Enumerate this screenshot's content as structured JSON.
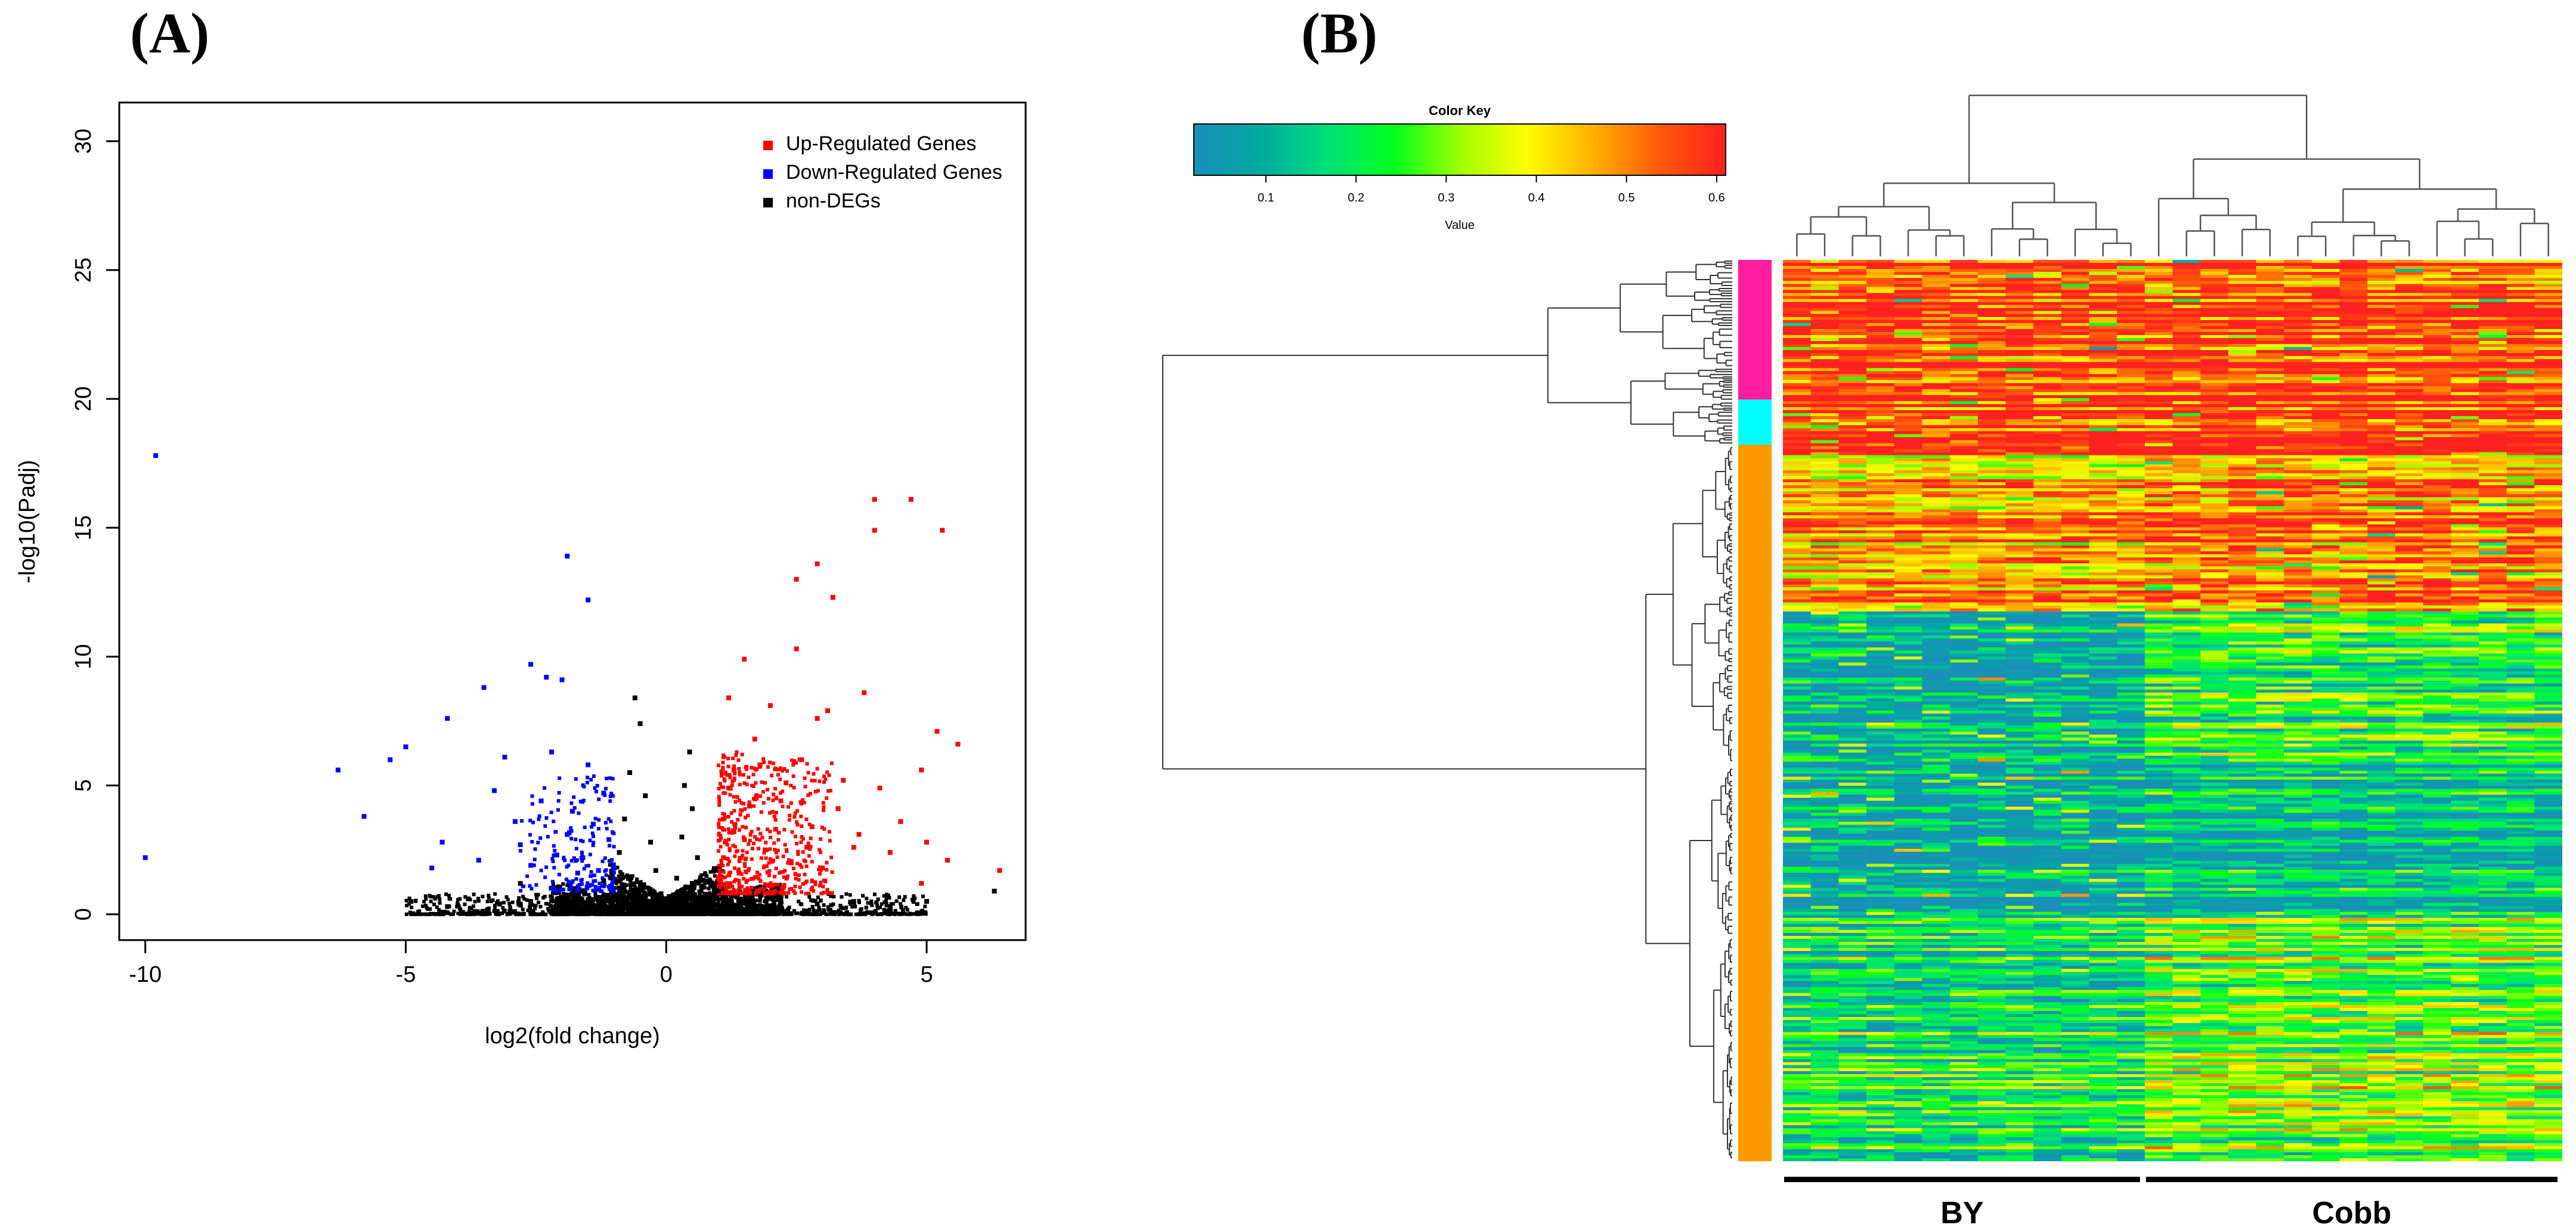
{
  "panels": {
    "a_label": "(A)",
    "b_label": "(B)"
  },
  "chart_data": [
    {
      "type": "scatter",
      "title": "",
      "xlabel": "log2(fold change)",
      "ylabel": "-log10(Padj)",
      "xlim": [
        -10.5,
        6.9
      ],
      "ylim": [
        -1.0,
        31.5
      ],
      "xticks": [
        -10,
        -5,
        0,
        5
      ],
      "yticks": [
        0,
        5,
        10,
        15,
        20,
        25,
        30
      ],
      "legend_position": "top-right",
      "series": [
        {
          "name": "Up-Regulated Genes",
          "color": "#ff0000",
          "points": [
            [
              4.0,
              16.1
            ],
            [
              4.7,
              16.1
            ],
            [
              5.3,
              14.9
            ],
            [
              4.0,
              14.9
            ],
            [
              2.9,
              13.6
            ],
            [
              2.5,
              13.0
            ],
            [
              3.2,
              12.3
            ],
            [
              2.5,
              10.3
            ],
            [
              1.5,
              9.9
            ],
            [
              3.8,
              8.6
            ],
            [
              5.2,
              7.1
            ],
            [
              5.6,
              6.6
            ],
            [
              2.9,
              7.6
            ],
            [
              3.1,
              7.9
            ],
            [
              1.2,
              8.4
            ],
            [
              2.0,
              8.1
            ],
            [
              4.9,
              5.6
            ],
            [
              4.1,
              4.9
            ],
            [
              3.4,
              5.2
            ],
            [
              4.5,
              3.6
            ],
            [
              5.0,
              2.8
            ],
            [
              5.4,
              2.1
            ],
            [
              6.4,
              1.7
            ],
            [
              4.9,
              1.2
            ],
            [
              3.6,
              2.6
            ],
            [
              2.8,
              3.4
            ],
            [
              2.2,
              4.4
            ],
            [
              1.8,
              5.8
            ],
            [
              1.6,
              4.2
            ],
            [
              1.3,
              3.2
            ],
            [
              1.1,
              2.2
            ],
            [
              1.4,
              1.6
            ],
            [
              1.9,
              2.5
            ],
            [
              2.4,
              2.0
            ],
            [
              3.0,
              1.8
            ],
            [
              1.2,
              4.9
            ],
            [
              1.7,
              6.8
            ],
            [
              2.6,
              6.0
            ],
            [
              3.3,
              4.1
            ],
            [
              4.3,
              2.4
            ],
            [
              1.5,
              2.9
            ],
            [
              2.1,
              3.3
            ],
            [
              1.0,
              1.4
            ],
            [
              1.3,
              5.6
            ],
            [
              2.7,
              2.6
            ],
            [
              3.7,
              3.1
            ],
            [
              1.1,
              3.7
            ],
            [
              2.3,
              5.1
            ]
          ]
        },
        {
          "name": "Down-Regulated Genes",
          "color": "#0000ff",
          "points": [
            [
              -9.8,
              17.8
            ],
            [
              -10.0,
              2.2
            ],
            [
              -6.3,
              5.6
            ],
            [
              -5.8,
              3.8
            ],
            [
              -5.3,
              6.0
            ],
            [
              -5.0,
              6.5
            ],
            [
              -4.2,
              7.6
            ],
            [
              -3.5,
              8.8
            ],
            [
              -2.6,
              9.7
            ],
            [
              -2.3,
              9.2
            ],
            [
              -2.0,
              9.1
            ],
            [
              -1.9,
              13.9
            ],
            [
              -1.5,
              12.2
            ],
            [
              -3.1,
              6.1
            ],
            [
              -2.2,
              6.3
            ],
            [
              -1.5,
              5.8
            ],
            [
              -1.2,
              4.7
            ],
            [
              -2.9,
              3.6
            ],
            [
              -4.3,
              2.8
            ],
            [
              -4.5,
              1.8
            ],
            [
              -3.6,
              2.1
            ],
            [
              -2.8,
              2.7
            ],
            [
              -2.4,
              4.4
            ],
            [
              -1.9,
              3.1
            ],
            [
              -1.6,
              2.2
            ],
            [
              -1.3,
              1.7
            ],
            [
              -1.1,
              2.9
            ],
            [
              -1.8,
              4.0
            ],
            [
              -2.6,
              1.9
            ],
            [
              -3.3,
              4.8
            ],
            [
              -1.4,
              3.5
            ],
            [
              -1.0,
              1.8
            ],
            [
              -2.1,
              2.3
            ],
            [
              -1.7,
              1.6
            ]
          ]
        },
        {
          "name": "non-DEGs",
          "color": "#000000",
          "points": [
            [
              -4.9,
              0.5
            ],
            [
              -4.2,
              0.3
            ],
            [
              -3.8,
              0.6
            ],
            [
              -3.2,
              0.4
            ],
            [
              -2.6,
              0.5
            ],
            [
              -2.1,
              0.4
            ],
            [
              -1.6,
              0.9
            ],
            [
              -1.2,
              1.3
            ],
            [
              -0.9,
              2.4
            ],
            [
              -0.8,
              3.7
            ],
            [
              -0.7,
              5.5
            ],
            [
              -0.6,
              8.4
            ],
            [
              -0.5,
              7.4
            ],
            [
              -0.4,
              4.6
            ],
            [
              -0.3,
              2.8
            ],
            [
              -0.2,
              1.7
            ],
            [
              -0.1,
              0.8
            ],
            [
              0.0,
              0.2
            ],
            [
              0.1,
              0.6
            ],
            [
              0.2,
              1.4
            ],
            [
              0.3,
              3.0
            ],
            [
              0.35,
              5.0
            ],
            [
              0.45,
              6.3
            ],
            [
              0.5,
              4.1
            ],
            [
              0.6,
              2.2
            ],
            [
              0.7,
              1.1
            ],
            [
              0.8,
              0.7
            ],
            [
              1.1,
              0.5
            ],
            [
              1.6,
              0.4
            ],
            [
              2.2,
              0.6
            ],
            [
              2.9,
              0.4
            ],
            [
              3.6,
              0.5
            ],
            [
              4.3,
              0.3
            ],
            [
              5.0,
              0.5
            ],
            [
              6.3,
              0.9
            ],
            [
              -1.0,
              0.6
            ],
            [
              -0.5,
              1.2
            ],
            [
              0.5,
              1.2
            ],
            [
              1.0,
              0.9
            ],
            [
              -2.8,
              1.2
            ]
          ]
        }
      ]
    },
    {
      "type": "heatmap",
      "title": "",
      "color_key": {
        "title": "Color Key",
        "label": "Value",
        "range": [
          0.02,
          0.61
        ],
        "ticks": [
          "0.1",
          "0.2",
          "0.3",
          "0.4",
          "0.5",
          "0.6"
        ],
        "tick_values": [
          0.1,
          0.2,
          0.3,
          0.4,
          0.5,
          0.6
        ],
        "colors": [
          "#1a8fb8",
          "#00a8a0",
          "#00e07a",
          "#00ff1e",
          "#9fff00",
          "#ffff00",
          "#ffb000",
          "#ff5a0a",
          "#ff2020"
        ]
      },
      "n_columns": 28,
      "groups": [
        {
          "name": "BY",
          "columns": 13
        },
        {
          "name": "Cobb",
          "columns": 15
        }
      ],
      "row_clusters": [
        {
          "color": "#ff1c9e",
          "fraction": 0.155
        },
        {
          "color": "#00ffff",
          "fraction": 0.05
        },
        {
          "color": "#ff9900",
          "fraction": 0.795
        }
      ],
      "row_blocks": [
        {
          "fraction": 0.205,
          "by_value": 0.58,
          "cobb_value": 0.58
        },
        {
          "fraction": 0.185,
          "by_value": 0.48,
          "cobb_value": 0.53
        },
        {
          "fraction": 0.16,
          "by_value": 0.05,
          "cobb_value": 0.22
        },
        {
          "fraction": 0.18,
          "by_value": 0.04,
          "cobb_value": 0.1
        },
        {
          "fraction": 0.27,
          "by_value": 0.2,
          "cobb_value": 0.3
        }
      ]
    }
  ]
}
